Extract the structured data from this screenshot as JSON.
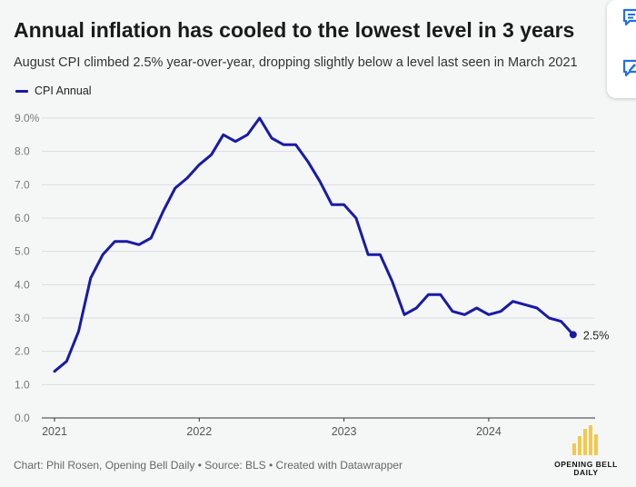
{
  "header": {
    "title": "Annual inflation has cooled to the lowest level in 3 years",
    "subtitle": "August CPI climbed 2.5% year-over-year, dropping slightly below a level last seen in March 2021"
  },
  "legend": {
    "label": "CPI Annual"
  },
  "footer": {
    "source": "Chart: Phil Rosen, Opening Bell Daily • Source: BLS • Created with Datawrapper"
  },
  "logo": {
    "text_line1": "OPENING BELL",
    "text_line2": "DAILY",
    "color": "#f2c94c"
  },
  "side_widget": {
    "icons": [
      "comment-icon",
      "edit-note-icon"
    ]
  },
  "chart_data": {
    "type": "line",
    "title": "Annual inflation has cooled to the lowest level in 3 years",
    "subtitle": "August CPI climbed 2.5% year-over-year, dropping slightly below a level last seen in March 2021",
    "xlabel": "",
    "ylabel": "",
    "ylim": [
      0,
      9
    ],
    "yticks": [
      "0.0",
      "1.0",
      "2.0",
      "3.0",
      "4.0",
      "5.0",
      "6.0",
      "7.0",
      "8.0",
      "9.0%"
    ],
    "xticks": [
      "2021",
      "2022",
      "2023",
      "2024"
    ],
    "grid": true,
    "legend_position": "top-left",
    "line_color": "#1a1aa6",
    "end_label": "2.5%",
    "series": [
      {
        "name": "CPI Annual",
        "x": [
          "2021-01",
          "2021-02",
          "2021-03",
          "2021-04",
          "2021-05",
          "2021-06",
          "2021-07",
          "2021-08",
          "2021-09",
          "2021-10",
          "2021-11",
          "2021-12",
          "2022-01",
          "2022-02",
          "2022-03",
          "2022-04",
          "2022-05",
          "2022-06",
          "2022-07",
          "2022-08",
          "2022-09",
          "2022-10",
          "2022-11",
          "2022-12",
          "2023-01",
          "2023-02",
          "2023-03",
          "2023-04",
          "2023-05",
          "2023-06",
          "2023-07",
          "2023-08",
          "2023-09",
          "2023-10",
          "2023-11",
          "2023-12",
          "2024-01",
          "2024-02",
          "2024-03",
          "2024-04",
          "2024-05",
          "2024-06",
          "2024-07",
          "2024-08"
        ],
        "values": [
          1.4,
          1.7,
          2.6,
          4.2,
          4.9,
          5.3,
          5.3,
          5.2,
          5.4,
          6.2,
          6.9,
          7.2,
          7.6,
          7.9,
          8.5,
          8.3,
          8.5,
          9.0,
          8.4,
          8.2,
          8.2,
          7.7,
          7.1,
          6.4,
          6.4,
          6.0,
          4.9,
          4.9,
          4.1,
          3.1,
          3.3,
          3.7,
          3.7,
          3.2,
          3.1,
          3.3,
          3.1,
          3.2,
          3.5,
          3.4,
          3.3,
          3.0,
          2.9,
          2.5
        ]
      }
    ]
  }
}
